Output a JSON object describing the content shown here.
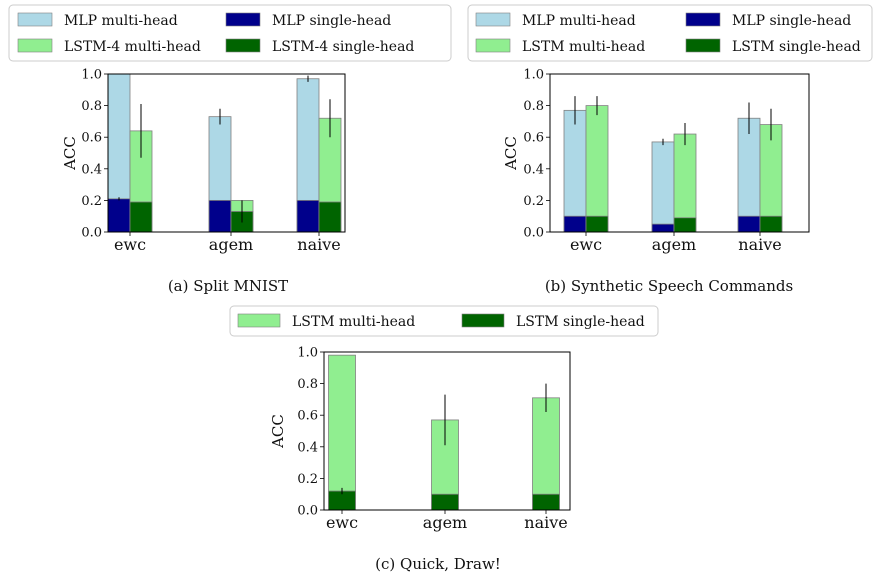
{
  "colors": {
    "mlp_multi": "#add8e6",
    "mlp_single": "#00008b",
    "lstm_multi": "#90ee90",
    "lstm_single": "#006400",
    "edge": "#808080",
    "error": "#000000"
  },
  "chart_data": [
    {
      "type": "bar",
      "caption": "(a) Split MNIST",
      "ylabel": "ACC",
      "ylim": [
        0,
        1.0
      ],
      "yticks": [
        "0.0",
        "0.2",
        "0.4",
        "0.6",
        "0.8",
        "1.0"
      ],
      "categories": [
        "ewc",
        "agem",
        "naive"
      ],
      "legend": [
        "MLP multi-head",
        "MLP single-head",
        "LSTM-4 multi-head",
        "LSTM-4 single-head"
      ],
      "series": [
        {
          "name": "MLP multi-head",
          "model": "mlp",
          "head": "multi",
          "values": [
            1.0,
            0.73,
            0.97
          ],
          "errors": [
            0.0,
            0.05,
            0.02
          ]
        },
        {
          "name": "MLP single-head",
          "model": "mlp",
          "head": "single",
          "values": [
            0.21,
            0.2,
            0.2
          ],
          "errors": [
            0.01,
            0.0,
            0.0
          ]
        },
        {
          "name": "LSTM-4 multi-head",
          "model": "lstm",
          "head": "multi",
          "values": [
            0.64,
            0.2,
            0.72
          ],
          "errors": [
            0.17,
            0.0,
            0.12
          ]
        },
        {
          "name": "LSTM-4 single-head",
          "model": "lstm",
          "head": "single",
          "values": [
            0.19,
            0.13,
            0.19
          ],
          "errors": [
            0.0,
            0.07,
            0.0
          ]
        }
      ]
    },
    {
      "type": "bar",
      "caption": "(b) Synthetic Speech Commands",
      "ylabel": "ACC",
      "ylim": [
        0,
        1.0
      ],
      "yticks": [
        "0.0",
        "0.2",
        "0.4",
        "0.6",
        "0.8",
        "1.0"
      ],
      "categories": [
        "ewc",
        "agem",
        "naive"
      ],
      "legend": [
        "MLP multi-head",
        "MLP single-head",
        "LSTM multi-head",
        "LSTM single-head"
      ],
      "series": [
        {
          "name": "MLP multi-head",
          "model": "mlp",
          "head": "multi",
          "values": [
            0.77,
            0.57,
            0.72
          ],
          "errors": [
            0.09,
            0.02,
            0.1
          ]
        },
        {
          "name": "MLP single-head",
          "model": "mlp",
          "head": "single",
          "values": [
            0.1,
            0.05,
            0.1
          ],
          "errors": [
            0.0,
            0.0,
            0.0
          ]
        },
        {
          "name": "LSTM multi-head",
          "model": "lstm",
          "head": "multi",
          "values": [
            0.8,
            0.62,
            0.68
          ],
          "errors": [
            0.06,
            0.07,
            0.1
          ]
        },
        {
          "name": "LSTM single-head",
          "model": "lstm",
          "head": "single",
          "values": [
            0.1,
            0.09,
            0.1
          ],
          "errors": [
            0.0,
            0.0,
            0.0
          ]
        }
      ]
    },
    {
      "type": "bar",
      "caption": "(c) Quick, Draw!",
      "ylabel": "ACC",
      "ylim": [
        0,
        1.0
      ],
      "yticks": [
        "0.0",
        "0.2",
        "0.4",
        "0.6",
        "0.8",
        "1.0"
      ],
      "categories": [
        "ewc",
        "agem",
        "naive"
      ],
      "legend": [
        "LSTM multi-head",
        "LSTM single-head"
      ],
      "series": [
        {
          "name": "LSTM multi-head",
          "model": "lstm",
          "head": "multi",
          "values": [
            0.98,
            0.57,
            0.71
          ],
          "errors": [
            0.0,
            0.16,
            0.09
          ]
        },
        {
          "name": "LSTM single-head",
          "model": "lstm",
          "head": "single",
          "values": [
            0.12,
            0.1,
            0.1
          ],
          "errors": [
            0.02,
            0.0,
            0.0
          ]
        }
      ]
    }
  ]
}
